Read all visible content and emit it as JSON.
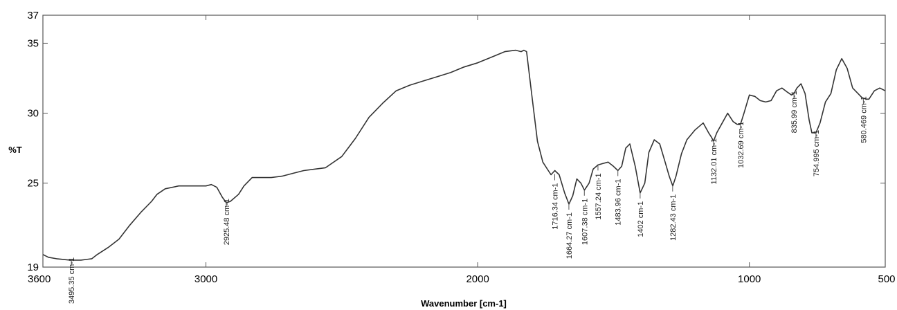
{
  "chart_data": {
    "type": "line",
    "xlabel": "Wavenumber [cm-1]",
    "ylabel": "%T",
    "xlim": [
      3600,
      500
    ],
    "ylim": [
      19,
      37
    ],
    "x_reversed": true,
    "x_ticks": [
      3600,
      3000,
      2000,
      1000,
      500
    ],
    "y_ticks": [
      19,
      25,
      30,
      35,
      37
    ],
    "grid": false,
    "line_color": "#333333",
    "series": [
      {
        "x": [
          3600,
          3580,
          3550,
          3500,
          3460,
          3420,
          3400,
          3360,
          3320,
          3280,
          3240,
          3200,
          3180,
          3150,
          3100,
          3050,
          3000,
          2980,
          2960,
          2940,
          2925,
          2910,
          2880,
          2860,
          2830,
          2800,
          2760,
          2720,
          2680,
          2640,
          2600,
          2560,
          2500,
          2450,
          2400,
          2350,
          2300,
          2250,
          2200,
          2150,
          2100,
          2050,
          2000,
          1950,
          1900,
          1860,
          1840,
          1830,
          1820,
          1800,
          1780,
          1760,
          1740,
          1730,
          1716,
          1700,
          1680,
          1664,
          1650,
          1635,
          1620,
          1607,
          1590,
          1575,
          1557,
          1540,
          1520,
          1500,
          1484,
          1470,
          1455,
          1440,
          1420,
          1402,
          1385,
          1370,
          1350,
          1330,
          1310,
          1295,
          1282,
          1270,
          1250,
          1230,
          1200,
          1170,
          1150,
          1140,
          1132,
          1120,
          1100,
          1080,
          1060,
          1045,
          1033,
          1020,
          1000,
          980,
          960,
          940,
          920,
          900,
          880,
          860,
          845,
          836,
          825,
          810,
          795,
          780,
          770,
          755,
          740,
          720,
          700,
          680,
          660,
          640,
          620,
          600,
          585,
          570,
          560,
          540,
          520,
          500
        ],
        "y": [
          19.9,
          19.7,
          19.6,
          19.5,
          19.5,
          19.6,
          19.9,
          20.4,
          21.0,
          22.0,
          22.9,
          23.7,
          24.2,
          24.6,
          24.8,
          24.8,
          24.8,
          24.9,
          24.7,
          24.0,
          23.6,
          23.7,
          24.2,
          24.8,
          25.4,
          25.4,
          25.4,
          25.5,
          25.7,
          25.9,
          26.0,
          26.1,
          26.9,
          28.2,
          29.7,
          30.7,
          31.6,
          32.0,
          32.3,
          32.6,
          32.9,
          33.3,
          33.6,
          34.0,
          34.4,
          34.5,
          34.4,
          34.5,
          34.4,
          31.2,
          28.0,
          26.5,
          25.9,
          25.6,
          25.9,
          25.6,
          24.3,
          23.5,
          24.1,
          25.3,
          25.0,
          24.5,
          25.0,
          26.0,
          26.3,
          26.4,
          26.5,
          26.2,
          25.9,
          26.2,
          27.5,
          27.8,
          26.2,
          24.3,
          25.0,
          27.2,
          28.1,
          27.8,
          26.5,
          25.5,
          24.8,
          25.5,
          27.1,
          28.1,
          28.8,
          29.3,
          28.6,
          28.3,
          28.0,
          28.6,
          29.3,
          30.0,
          29.4,
          29.2,
          29.2,
          30.0,
          31.3,
          31.2,
          30.9,
          30.8,
          30.9,
          31.6,
          31.8,
          31.5,
          31.3,
          31.4,
          31.8,
          32.1,
          31.4,
          29.5,
          28.6,
          28.6,
          29.3,
          30.8,
          31.4,
          33.1,
          33.9,
          33.2,
          31.8,
          31.4,
          31.1,
          31.0,
          31.0,
          31.6,
          31.8,
          31.6
        ]
      }
    ],
    "annotations": [
      {
        "x": 3495.35,
        "label": "3495.35 cm-1",
        "y_tip": 19.5
      },
      {
        "x": 2925.48,
        "label": "2925.48 cm-1",
        "y_tip": 23.7
      },
      {
        "x": 1716.34,
        "label": "1716.34 cm-1",
        "y_tip": 25.6
      },
      {
        "x": 1664.27,
        "label": "1664.27 cm-1",
        "y_tip": 23.5
      },
      {
        "x": 1607.38,
        "label": "1607.38 cm-1",
        "y_tip": 24.5
      },
      {
        "x": 1557.24,
        "label": "1557.24 cm-1",
        "y_tip": 26.3
      },
      {
        "x": 1483.96,
        "label": "1483.96 cm-1",
        "y_tip": 25.9
      },
      {
        "x": 1402,
        "label": "1402 cm-1",
        "y_tip": 24.3
      },
      {
        "x": 1282.43,
        "label": "1282.43 cm-1",
        "y_tip": 24.8
      },
      {
        "x": 1132.01,
        "label": "1132.01 cm-1",
        "y_tip": 28.0
      },
      {
        "x": 1032.69,
        "label": "1032.69 cm-1",
        "y_tip": 29.2
      },
      {
        "x": 835.99,
        "label": "835.99 cm-1",
        "y_tip": 31.4
      },
      {
        "x": 754.995,
        "label": "754.995 cm-1",
        "y_tip": 28.6
      },
      {
        "x": 580.469,
        "label": "580.469 cm-1",
        "y_tip": 31.0
      }
    ]
  }
}
